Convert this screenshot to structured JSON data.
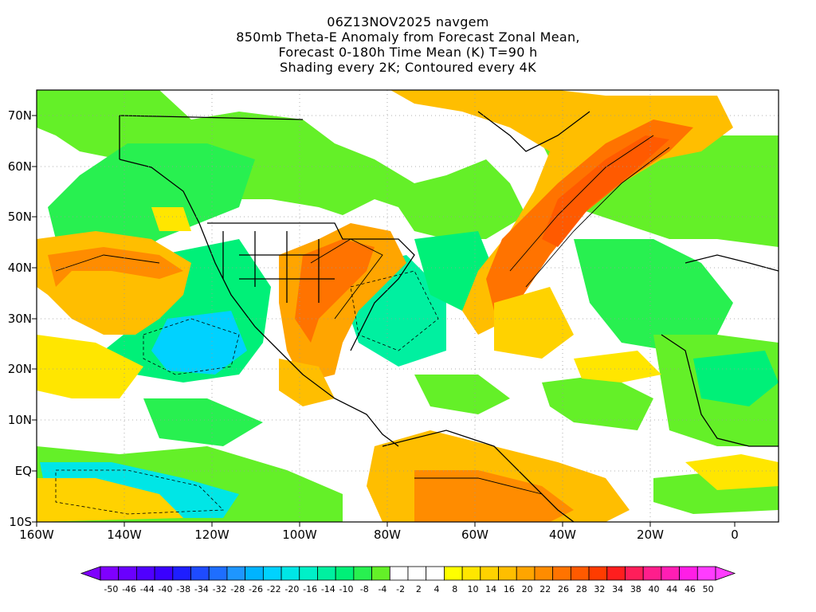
{
  "title_lines": [
    "06Z13NOV2025 navgem",
    "850mb Theta-E Anomaly from Forecast Zonal Mean,",
    "Forecast 0-180h Time Mean (K) T=90 h",
    "Shading every 2K; Contoured every 4K"
  ],
  "lat_labels": [
    "70N",
    "60N",
    "50N",
    "40N",
    "30N",
    "20N",
    "10N",
    "EQ",
    "10S"
  ],
  "lon_labels": [
    "160W",
    "140W",
    "120W",
    "100W",
    "80W",
    "60W",
    "40W",
    "20W",
    "0"
  ],
  "colorbar": {
    "labels": [
      "-50",
      "-46",
      "-44",
      "-40",
      "-38",
      "-34",
      "-32",
      "-28",
      "-26",
      "-22",
      "-20",
      "-16",
      "-14",
      "-10",
      "-8",
      "-4",
      "-2",
      "2",
      "4",
      "8",
      "10",
      "14",
      "16",
      "20",
      "22",
      "26",
      "28",
      "32",
      "34",
      "38",
      "40",
      "44",
      "46",
      "50"
    ],
    "colors": [
      "#7f00ff",
      "#6a00ff",
      "#5000ff",
      "#3a00ff",
      "#1e1eff",
      "#1e4bff",
      "#1e6eff",
      "#1e96ff",
      "#00b4ff",
      "#00d2ff",
      "#00e6e6",
      "#00f0c8",
      "#00f0a0",
      "#00f078",
      "#28f050",
      "#64f028",
      "#ffffff",
      "#ffffff",
      "#ffffff",
      "#ffff00",
      "#ffe600",
      "#ffd200",
      "#ffbe00",
      "#ffa500",
      "#ff8c00",
      "#ff7300",
      "#ff5a00",
      "#ff3c00",
      "#ff1e1e",
      "#ff1e5a",
      "#ff1e8c",
      "#ff1eb4",
      "#ff1ee6",
      "#ff3cff"
    ]
  }
}
